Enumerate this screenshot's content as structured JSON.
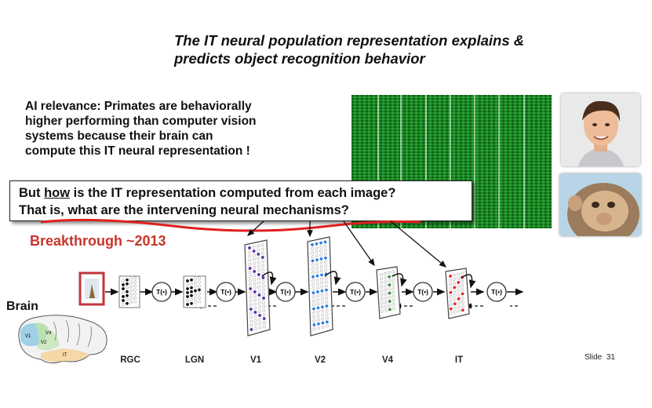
{
  "title": {
    "line1": "The IT neural population representation explains &",
    "line2": "predicts object recognition behavior"
  },
  "ai_relevance": {
    "line1": "AI relevance:  Primates are behaviorally",
    "line2": "higher performing than computer vision",
    "line3": "systems because their brain can",
    "line4": "compute this IT neural representation !"
  },
  "question": {
    "line1_pre": "But ",
    "line1_emph": "how",
    "line1_post": " is the IT representation computed from each image?",
    "line2": "That is, what are the intervening neural mechanisms?"
  },
  "breakthrough": "Breakthrough ~2013",
  "brain_label": "Brain",
  "brain_areas": [
    "V1",
    "V4",
    "V2",
    "IT"
  ],
  "transform_label": "T(•)",
  "stages": [
    "RGC",
    "LGN",
    "V1",
    "V2",
    "V4",
    "IT"
  ],
  "slide": {
    "label": "Slide",
    "number": "31"
  },
  "colors": {
    "title": "#111111",
    "breakthrough": "#c8352a",
    "underline": "#e02020",
    "heatmap": "#1a7f22",
    "v1_dots": "#5b2da6",
    "v2_dots": "#2f7fe0",
    "v4_dots": "#3a8f3a",
    "it_dots": "#e02a2a"
  },
  "icons": [
    "face-photo",
    "monkey-photo",
    "stimulus-image-icon",
    "brain-diagram-icon"
  ]
}
